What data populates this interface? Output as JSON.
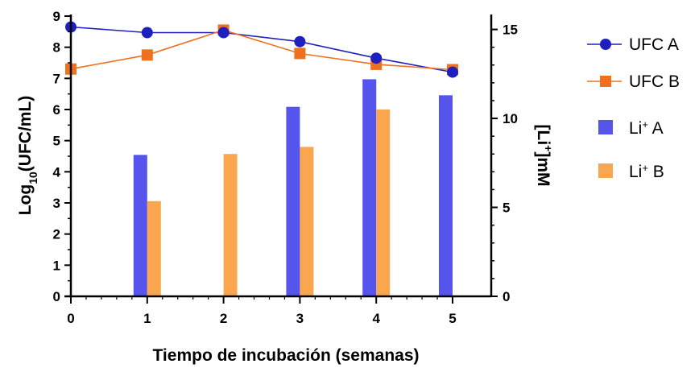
{
  "chart_data": {
    "type": "bar+line",
    "xlabel": "Tiempo de incubación (semanas)",
    "ylabel": {
      "prefix": "Log",
      "sub": "10",
      "suffix": "(UFC/mL)"
    },
    "y2label": {
      "prefix": "[Li",
      "sup": "+",
      "suffix": "]mM"
    },
    "x_ticks": [
      "0",
      "1",
      "2",
      "3",
      "4",
      "5"
    ],
    "y_ticks": [
      "0",
      "1",
      "2",
      "3",
      "4",
      "5",
      "6",
      "7",
      "8",
      "9"
    ],
    "y2_ticks": [
      "0",
      "5",
      "10",
      "15"
    ],
    "xlim": [
      0,
      5
    ],
    "ylim": [
      0,
      9
    ],
    "y2lim": [
      0,
      15.75
    ],
    "legend_position": "right",
    "line_series": [
      {
        "name": "UFC A",
        "color": "#1f1fbf",
        "marker": "circle",
        "x": [
          0,
          1,
          2,
          3,
          4,
          5
        ],
        "y": [
          8.65,
          8.47,
          8.47,
          8.18,
          7.65,
          7.2
        ]
      },
      {
        "name": "UFC B",
        "color": "#f0701e",
        "marker": "square",
        "x": [
          0,
          1,
          2,
          3,
          4,
          5
        ],
        "y": [
          7.3,
          7.75,
          8.55,
          7.8,
          7.45,
          7.28
        ]
      }
    ],
    "bar_series": [
      {
        "name": "Li⁺ A",
        "label_base": "Li",
        "label_sup": "+",
        "label_suffix": " A",
        "color": "#5555ee",
        "x": [
          0,
          1,
          2,
          3,
          4,
          5
        ],
        "values": [
          0,
          7.95,
          0,
          10.65,
          12.2,
          11.3
        ]
      },
      {
        "name": "Li⁺ B",
        "label_base": "Li",
        "label_sup": "+",
        "label_suffix": " B",
        "color": "#f9a64e",
        "x": [
          0,
          1,
          2,
          3,
          4,
          5
        ],
        "values": [
          0,
          5.35,
          8.0,
          8.4,
          10.5,
          0
        ]
      }
    ]
  }
}
